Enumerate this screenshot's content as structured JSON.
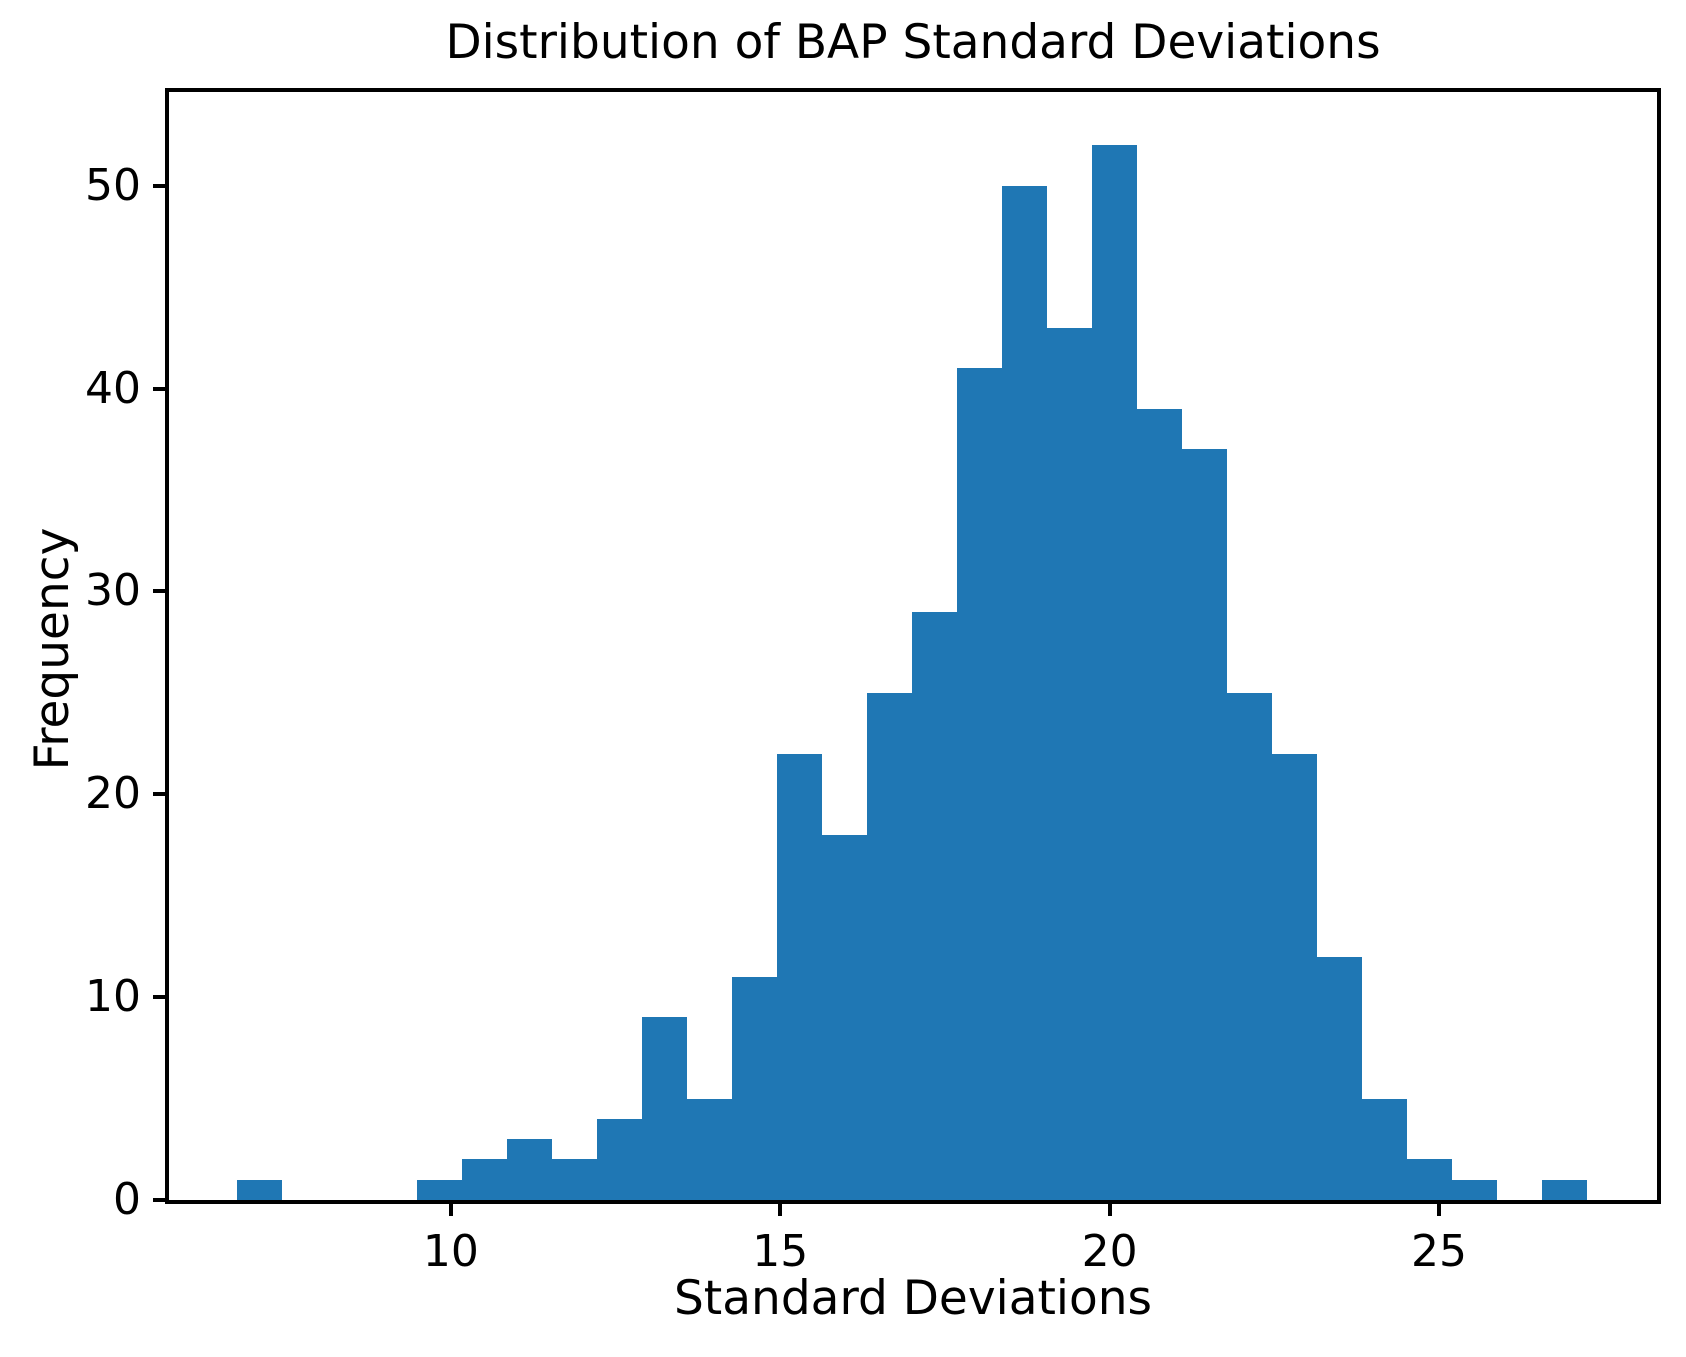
{
  "title": "Distribution of BAP Standard Deviations",
  "chart_data": {
    "type": "bar",
    "subtype": "histogram",
    "title": "Distribution of BAP Standard Deviations",
    "xlabel": "Standard Deviations",
    "ylabel": "Frequency",
    "bin_edges": [
      6.747,
      7.43,
      8.114,
      8.797,
      9.481,
      10.164,
      10.848,
      11.531,
      12.215,
      12.898,
      13.582,
      14.265,
      14.949,
      15.632,
      16.316,
      16.999,
      17.683,
      18.366,
      19.05,
      19.733,
      20.417,
      21.1,
      21.784,
      22.467,
      23.151,
      23.834,
      24.518,
      25.201,
      25.885,
      26.568,
      27.252
    ],
    "counts": [
      1,
      0,
      0,
      0,
      1,
      2,
      3,
      2,
      4,
      9,
      5,
      11,
      22,
      18,
      25,
      29,
      41,
      50,
      43,
      52,
      39,
      37,
      25,
      22,
      12,
      5,
      2,
      1,
      0,
      1
    ],
    "xticks": [
      10,
      15,
      20,
      25
    ],
    "yticks": [
      0,
      10,
      20,
      30,
      40,
      50
    ],
    "xlim": [
      5.72,
      28.31
    ],
    "ylim": [
      0,
      54.62
    ],
    "bar_color": "#1f77b4",
    "axis_color": "#000000",
    "grid": false,
    "legend_position": "none"
  }
}
